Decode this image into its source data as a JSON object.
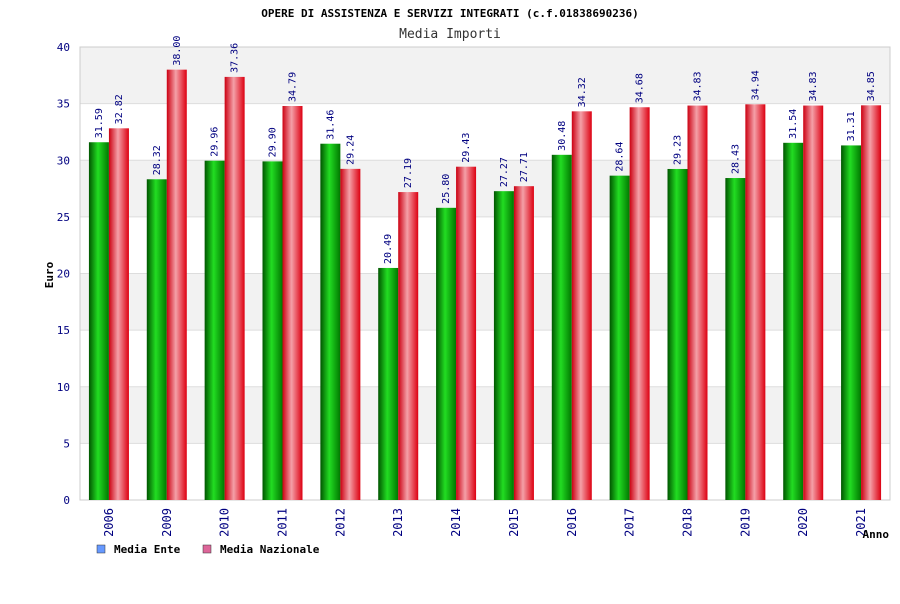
{
  "chart_data": {
    "type": "bar",
    "title": "OPERE DI ASSISTENZA E SERVIZI INTEGRATI (c.f.01838690236)",
    "subtitle": "Media Importi",
    "ylabel": "Euro",
    "xlabel": "Anno",
    "ylim": [
      0,
      40
    ],
    "yticks": [
      0,
      5,
      10,
      15,
      20,
      25,
      30,
      35,
      40
    ],
    "categories": [
      "2006",
      "2009",
      "2010",
      "2011",
      "2012",
      "2013",
      "2014",
      "2015",
      "2016",
      "2017",
      "2018",
      "2019",
      "2020",
      "2021"
    ],
    "series": [
      {
        "name": "Media Ente",
        "color": "#00aa00",
        "legend_color": "#6699ff",
        "values": [
          31.59,
          28.32,
          29.96,
          29.9,
          31.46,
          20.49,
          25.8,
          27.27,
          30.48,
          28.64,
          29.23,
          28.43,
          31.54,
          31.31
        ],
        "labels": [
          "31.59",
          "28.32",
          "29.96",
          "29.90",
          "31.46",
          "20.49",
          "25.80",
          "27.27",
          "30.48",
          "28.64",
          "29.23",
          "28.43",
          "31.54",
          "31.31"
        ]
      },
      {
        "name": "Media Nazionale",
        "color": "#ee1122",
        "legend_color": "#dd6699",
        "values": [
          32.82,
          38.0,
          37.36,
          34.79,
          29.24,
          27.19,
          29.43,
          27.71,
          34.32,
          34.68,
          34.83,
          34.94,
          34.83,
          34.85
        ],
        "labels": [
          "32.82",
          "38.00",
          "37.36",
          "34.79",
          "29.24",
          "27.19",
          "29.43",
          "27.71",
          "34.32",
          "34.68",
          "34.83",
          "34.94",
          "34.83",
          "34.85"
        ]
      }
    ],
    "grid": true,
    "legend_position": "bottom-left"
  }
}
